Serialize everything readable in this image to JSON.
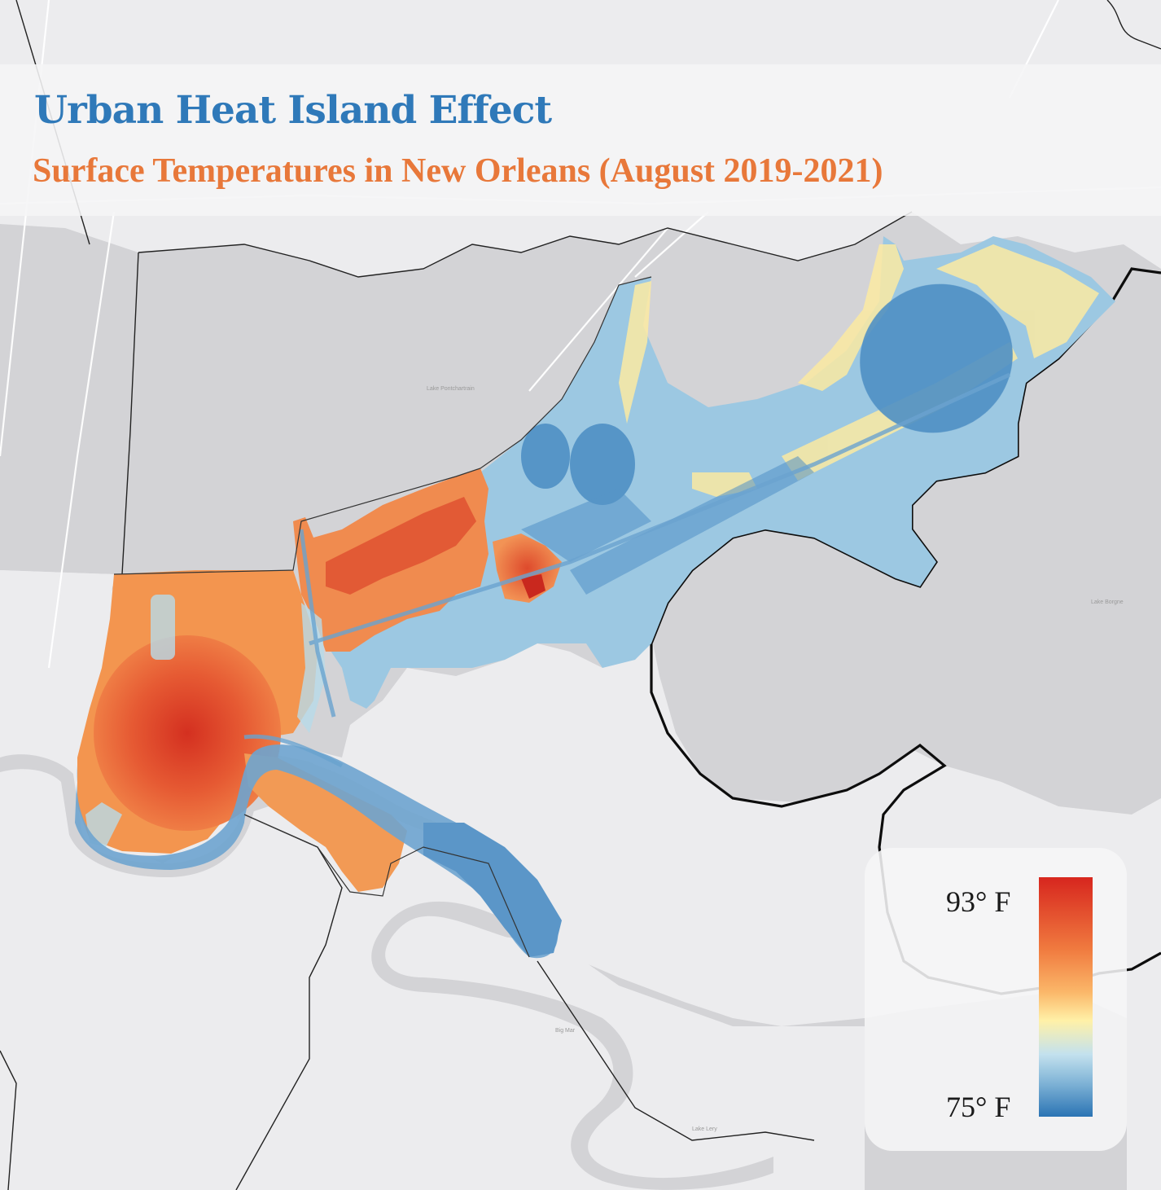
{
  "title": "Urban Heat Island Effect",
  "subtitle": "Surface Temperatures in New Orleans (August 2019-2021)",
  "colors": {
    "title": "#2f79b9",
    "subtitle": "#e8783a",
    "water": "#d3d3d6",
    "land": "#ececee",
    "boundary": "#111111"
  },
  "legend": {
    "max_label": "93° F",
    "min_label": "75° F",
    "max_value": 93,
    "min_value": 75,
    "unit": "°F",
    "ramp": [
      "#d7261e",
      "#f07a3f",
      "#fbb769",
      "#fff1a8",
      "#c3e1ee",
      "#7fb3d6",
      "#2b74b4"
    ]
  },
  "place_labels": {
    "lake_pontchartrain": "Lake Pontchartrain",
    "lake_borgne": "Lake Borgne",
    "big_mar": "Big Mar",
    "lake_lery": "Lake Lery"
  }
}
